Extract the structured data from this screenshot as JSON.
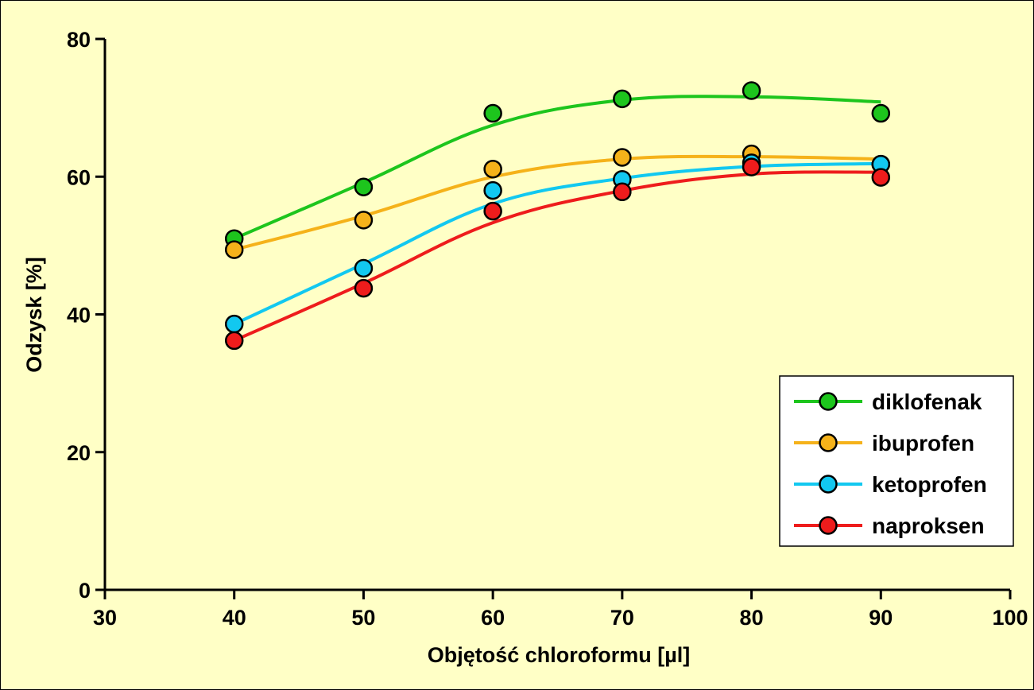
{
  "chart_data": {
    "type": "line",
    "title": "",
    "xlabel": "Objętość chloroformu [µl]",
    "ylabel": "Odzysk [%]",
    "xlim": [
      30,
      100
    ],
    "ylim": [
      0,
      80
    ],
    "x_ticks": [
      30,
      40,
      50,
      60,
      70,
      80,
      90,
      100
    ],
    "y_ticks": [
      0,
      20,
      40,
      60,
      80
    ],
    "x": [
      40,
      50,
      60,
      70,
      80,
      90
    ],
    "grid": false,
    "legend_position": "bottom-right",
    "series": [
      {
        "name": "diklofenak",
        "color": "#1DC51D",
        "values": [
          51.0,
          58.5,
          69.2,
          71.3,
          72.5,
          69.2
        ]
      },
      {
        "name": "ibuprofen",
        "color": "#F5B21A",
        "values": [
          49.4,
          53.7,
          61.1,
          62.8,
          63.3,
          61.8
        ]
      },
      {
        "name": "ketoprofen",
        "color": "#12C8F0",
        "values": [
          38.6,
          46.7,
          58.0,
          59.6,
          62.0,
          61.8
        ]
      },
      {
        "name": "naproksen",
        "color": "#EE1C1C",
        "values": [
          36.2,
          43.8,
          55.0,
          57.8,
          61.4,
          59.9
        ]
      }
    ]
  }
}
